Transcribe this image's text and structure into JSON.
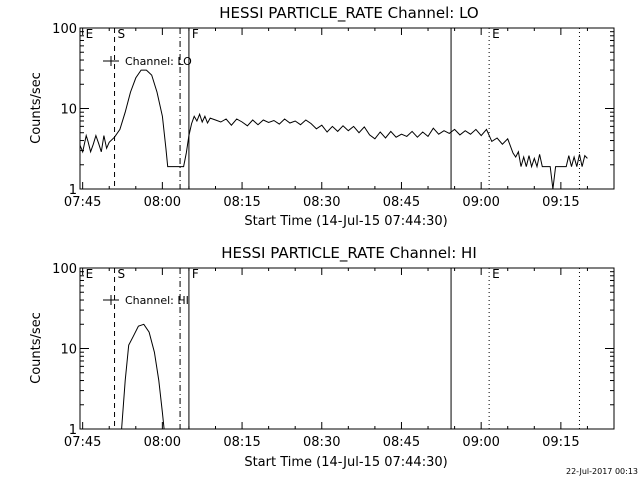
{
  "timestamp": "22-Jul-2017 00:13",
  "chart_data": [
    {
      "type": "line",
      "title": "HESSI PARTICLE_RATE Channel: LO",
      "xlabel": "Start Time (14-Jul-15 07:44:30)",
      "ylabel": "Counts/sec",
      "y_scale": "log",
      "ylim": [
        1,
        100
      ],
      "xlim": [
        "07:44:30",
        "09:25:00"
      ],
      "x_tick_labels": [
        "07:45",
        "08:00",
        "08:15",
        "08:30",
        "08:45",
        "09:00",
        "09:15"
      ],
      "y_tick_labels": [
        "1",
        "10",
        "100"
      ],
      "legend": {
        "position": "top-left",
        "label": "Channel: LO"
      },
      "markers": [
        {
          "label": "E",
          "time": "07:45:00",
          "style": "none"
        },
        {
          "label": "S",
          "time": "07:51:00",
          "style": "dashed"
        },
        {
          "label": "",
          "time": "08:03:20",
          "style": "dashdot"
        },
        {
          "label": "F",
          "time": "08:05:00",
          "style": "solid"
        },
        {
          "label": "",
          "time": "08:54:20",
          "style": "solid"
        },
        {
          "label": "E",
          "time": "09:01:30",
          "style": "dotted"
        },
        {
          "label": "",
          "time": "09:18:30",
          "style": "dotted"
        }
      ],
      "series": [
        {
          "points": [
            [
              "07:44:30",
              3.5
            ],
            [
              "07:45:00",
              2.9
            ],
            [
              "07:45:40",
              4.6
            ],
            [
              "07:46:00",
              3.9
            ],
            [
              "07:46:30",
              2.9
            ],
            [
              "07:47:00",
              3.6
            ],
            [
              "07:47:30",
              4.6
            ],
            [
              "07:48:00",
              3.7
            ],
            [
              "07:48:30",
              2.9
            ],
            [
              "07:49:00",
              4.6
            ],
            [
              "07:49:30",
              3.2
            ],
            [
              "07:50:00",
              3.8
            ],
            [
              "07:51:00",
              4.4
            ],
            [
              "07:52:00",
              5.5
            ],
            [
              "07:53:00",
              9
            ],
            [
              "07:54:00",
              16
            ],
            [
              "07:55:00",
              24
            ],
            [
              "07:56:00",
              30
            ],
            [
              "07:57:00",
              30
            ],
            [
              "07:58:00",
              26
            ],
            [
              "07:59:00",
              16
            ],
            [
              "08:00:00",
              8
            ],
            [
              "08:00:40",
              3.2
            ],
            [
              "08:01:00",
              1.9
            ],
            [
              "08:03:00",
              1.9
            ],
            [
              "08:04:00",
              1.9
            ],
            [
              "08:04:30",
              2.8
            ],
            [
              "08:05:00",
              4.6
            ],
            [
              "08:05:30",
              6.5
            ],
            [
              "08:06:00",
              8
            ],
            [
              "08:06:30",
              7
            ],
            [
              "08:07:00",
              8.5
            ],
            [
              "08:07:30",
              6.8
            ],
            [
              "08:08:00",
              8
            ],
            [
              "08:08:30",
              6.6
            ],
            [
              "08:09:00",
              7.6
            ],
            [
              "08:10:00",
              7.2
            ],
            [
              "08:11:00",
              6.8
            ],
            [
              "08:12:00",
              7.4
            ],
            [
              "08:13:00",
              6.2
            ],
            [
              "08:14:00",
              7.4
            ],
            [
              "08:15:00",
              6.8
            ],
            [
              "08:16:00",
              6.1
            ],
            [
              "08:17:00",
              7.2
            ],
            [
              "08:18:00",
              6.3
            ],
            [
              "08:19:00",
              7.2
            ],
            [
              "08:20:00",
              6.7
            ],
            [
              "08:21:00",
              7.1
            ],
            [
              "08:22:00",
              6.4
            ],
            [
              "08:23:00",
              7.4
            ],
            [
              "08:24:00",
              6.6
            ],
            [
              "08:25:00",
              7
            ],
            [
              "08:26:00",
              6.3
            ],
            [
              "08:27:00",
              7.2
            ],
            [
              "08:28:00",
              6.5
            ],
            [
              "08:29:00",
              5.6
            ],
            [
              "08:30:00",
              6.2
            ],
            [
              "08:31:00",
              5.1
            ],
            [
              "08:32:00",
              6
            ],
            [
              "08:33:00",
              5.2
            ],
            [
              "08:34:00",
              6.1
            ],
            [
              "08:35:00",
              5.3
            ],
            [
              "08:36:00",
              6
            ],
            [
              "08:37:00",
              5
            ],
            [
              "08:38:00",
              5.9
            ],
            [
              "08:39:00",
              4.7
            ],
            [
              "08:40:00",
              4.2
            ],
            [
              "08:41:00",
              5.1
            ],
            [
              "08:42:00",
              4.3
            ],
            [
              "08:43:00",
              5.2
            ],
            [
              "08:44:00",
              4.4
            ],
            [
              "08:45:00",
              4.8
            ],
            [
              "08:46:00",
              4.5
            ],
            [
              "08:47:00",
              5.2
            ],
            [
              "08:48:00",
              4.4
            ],
            [
              "08:49:00",
              5.1
            ],
            [
              "08:50:00",
              4.5
            ],
            [
              "08:51:00",
              5.7
            ],
            [
              "08:52:00",
              4.8
            ],
            [
              "08:53:00",
              5.3
            ],
            [
              "08:54:00",
              4.9
            ],
            [
              "08:55:00",
              5.5
            ],
            [
              "08:56:00",
              4.7
            ],
            [
              "08:57:00",
              5.3
            ],
            [
              "08:58:00",
              4.8
            ],
            [
              "08:59:00",
              5.5
            ],
            [
              "09:00:00",
              4.6
            ],
            [
              "09:01:00",
              5.5
            ],
            [
              "09:02:00",
              3.9
            ],
            [
              "09:03:00",
              4.3
            ],
            [
              "09:04:00",
              3.6
            ],
            [
              "09:05:00",
              4.2
            ],
            [
              "09:06:00",
              2.8
            ],
            [
              "09:06:30",
              2.5
            ],
            [
              "09:07:00",
              2.9
            ],
            [
              "09:07:30",
              1.9
            ],
            [
              "09:08:00",
              2.5
            ],
            [
              "09:08:30",
              1.9
            ],
            [
              "09:09:00",
              2.6
            ],
            [
              "09:09:30",
              1.9
            ],
            [
              "09:10:00",
              2.4
            ],
            [
              "09:10:30",
              1.9
            ],
            [
              "09:11:00",
              2.7
            ],
            [
              "09:11:30",
              1.9
            ],
            [
              "09:12:00",
              1.9
            ],
            [
              "09:13:00",
              1.9
            ],
            [
              "09:13:30",
              1
            ],
            [
              "09:14:00",
              1.9
            ],
            [
              "09:15:00",
              1.9
            ],
            [
              "09:16:00",
              1.9
            ],
            [
              "09:16:30",
              2.6
            ],
            [
              "09:17:00",
              1.9
            ],
            [
              "09:17:30",
              2.5
            ],
            [
              "09:18:00",
              1.9
            ],
            [
              "09:18:30",
              2.7
            ],
            [
              "09:19:00",
              1.9
            ],
            [
              "09:19:30",
              2.6
            ],
            [
              "09:20:00",
              2.4
            ]
          ]
        }
      ]
    },
    {
      "type": "line",
      "title": "HESSI PARTICLE_RATE Channel: HI",
      "xlabel": "Start Time (14-Jul-15 07:44:30)",
      "ylabel": "Counts/sec",
      "y_scale": "log",
      "ylim": [
        1,
        100
      ],
      "xlim": [
        "07:44:30",
        "09:25:00"
      ],
      "x_tick_labels": [
        "07:45",
        "08:00",
        "08:15",
        "08:30",
        "08:45",
        "09:00",
        "09:15"
      ],
      "y_tick_labels": [
        "1",
        "10",
        "100"
      ],
      "legend": {
        "position": "top-left",
        "label": "Channel: HI"
      },
      "markers": [
        {
          "label": "E",
          "time": "07:45:00",
          "style": "none"
        },
        {
          "label": "S",
          "time": "07:51:00",
          "style": "dashed"
        },
        {
          "label": "",
          "time": "08:03:20",
          "style": "dashdot"
        },
        {
          "label": "F",
          "time": "08:05:00",
          "style": "solid"
        },
        {
          "label": "",
          "time": "08:54:20",
          "style": "solid"
        },
        {
          "label": "E",
          "time": "09:01:30",
          "style": "dotted"
        },
        {
          "label": "",
          "time": "09:18:30",
          "style": "dotted"
        }
      ],
      "series": [
        {
          "points": [
            [
              "07:52:20",
              1
            ],
            [
              "07:53:00",
              4
            ],
            [
              "07:53:40",
              11
            ],
            [
              "07:54:30",
              14
            ],
            [
              "07:55:30",
              19
            ],
            [
              "07:56:30",
              20
            ],
            [
              "07:57:30",
              16
            ],
            [
              "07:58:30",
              9
            ],
            [
              "07:59:20",
              4
            ],
            [
              "08:00:00",
              1.6
            ],
            [
              "08:00:20",
              1
            ]
          ]
        }
      ]
    }
  ]
}
